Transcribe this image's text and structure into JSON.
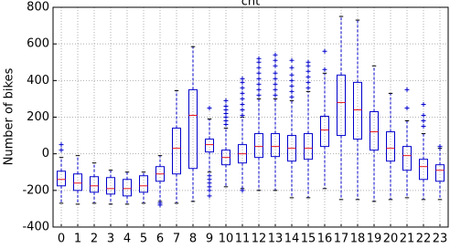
{
  "chart_data": {
    "type": "box",
    "title": "cnt",
    "y_label": "Number of bikes",
    "categories": [
      "0",
      "1",
      "2",
      "3",
      "4",
      "5",
      "6",
      "7",
      "8",
      "9",
      "10",
      "11",
      "12",
      "13",
      "14",
      "15",
      "16",
      "17",
      "18",
      "19",
      "20",
      "21",
      "22",
      "23"
    ],
    "box_color": "#0000cc",
    "median_color": "#e8101a",
    "flier_color": "#0000cc",
    "ylim": [
      -400,
      800
    ],
    "yticks": [
      -400,
      -200,
      0,
      200,
      400,
      600,
      800
    ],
    "grid": true,
    "boxes": [
      {
        "whislo": -270,
        "q1": -175,
        "med": -140,
        "q3": -95,
        "whishi": -20,
        "fliers": [
          20,
          50
        ]
      },
      {
        "whislo": -275,
        "q1": -200,
        "med": -160,
        "q3": -110,
        "whishi": -10,
        "fliers": []
      },
      {
        "whislo": -270,
        "q1": -210,
        "med": -175,
        "q3": -125,
        "whishi": -50,
        "fliers": []
      },
      {
        "whislo": -275,
        "q1": -220,
        "med": -190,
        "q3": -130,
        "whishi": -90,
        "fliers": []
      },
      {
        "whislo": -275,
        "q1": -230,
        "med": -190,
        "q3": -140,
        "whishi": -100,
        "fliers": []
      },
      {
        "whislo": -270,
        "q1": -210,
        "med": -175,
        "q3": -120,
        "whishi": -100,
        "fliers": []
      },
      {
        "whislo": -260,
        "q1": -150,
        "med": -110,
        "q3": -70,
        "whishi": -10,
        "fliers": [
          -270,
          -280
        ]
      },
      {
        "whislo": -270,
        "q1": -110,
        "med": 30,
        "q3": 140,
        "whishi": 345,
        "fliers": []
      },
      {
        "whislo": -260,
        "q1": -80,
        "med": 210,
        "q3": 350,
        "whishi": 585,
        "fliers": []
      },
      {
        "whislo": -100,
        "q1": 10,
        "med": 50,
        "q3": 80,
        "whishi": 190,
        "fliers": [
          -120,
          -140,
          -160,
          -180,
          -200,
          -230,
          250
        ]
      },
      {
        "whislo": -180,
        "q1": -60,
        "med": -20,
        "q3": 20,
        "whishi": 140,
        "fliers": [
          160,
          180,
          200,
          220,
          240,
          260,
          290
        ]
      },
      {
        "whislo": -190,
        "q1": -50,
        "med": 0,
        "q3": 50,
        "whishi": 200,
        "fliers": [
          -200,
          210,
          240,
          270,
          300,
          330,
          360,
          390,
          410
        ]
      },
      {
        "whislo": -200,
        "q1": -20,
        "med": 40,
        "q3": 110,
        "whishi": 300,
        "fliers": [
          320,
          350,
          380,
          410,
          440,
          470,
          500,
          520
        ]
      },
      {
        "whislo": -200,
        "q1": -15,
        "med": 40,
        "q3": 110,
        "whishi": 300,
        "fliers": [
          320,
          350,
          380,
          410,
          440,
          480,
          510,
          540
        ]
      },
      {
        "whislo": -240,
        "q1": -40,
        "med": 30,
        "q3": 100,
        "whishi": 290,
        "fliers": [
          310,
          340,
          370,
          400,
          430,
          470,
          510
        ]
      },
      {
        "whislo": -240,
        "q1": -30,
        "med": 30,
        "q3": 110,
        "whishi": 340,
        "fliers": [
          360,
          390,
          420,
          450,
          480,
          500
        ]
      },
      {
        "whislo": -190,
        "q1": 40,
        "med": 130,
        "q3": 205,
        "whishi": 440,
        "fliers": [
          460,
          560
        ]
      },
      {
        "whislo": -250,
        "q1": 100,
        "med": 280,
        "q3": 430,
        "whishi": 750,
        "fliers": []
      },
      {
        "whislo": -250,
        "q1": 80,
        "med": 240,
        "q3": 390,
        "whishi": 730,
        "fliers": []
      },
      {
        "whislo": -260,
        "q1": 20,
        "med": 120,
        "q3": 230,
        "whishi": 480,
        "fliers": []
      },
      {
        "whislo": -250,
        "q1": -40,
        "med": 30,
        "q3": 120,
        "whishi": 330,
        "fliers": []
      },
      {
        "whislo": -240,
        "q1": -90,
        "med": -10,
        "q3": 40,
        "whishi": 180,
        "fliers": [
          250,
          350
        ]
      },
      {
        "whislo": -250,
        "q1": -140,
        "med": -70,
        "q3": -30,
        "whishi": 110,
        "fliers": [
          150,
          180,
          210,
          270
        ]
      },
      {
        "whislo": -250,
        "q1": -150,
        "med": -90,
        "q3": -60,
        "whishi": 30,
        "fliers": [
          40
        ]
      }
    ]
  }
}
